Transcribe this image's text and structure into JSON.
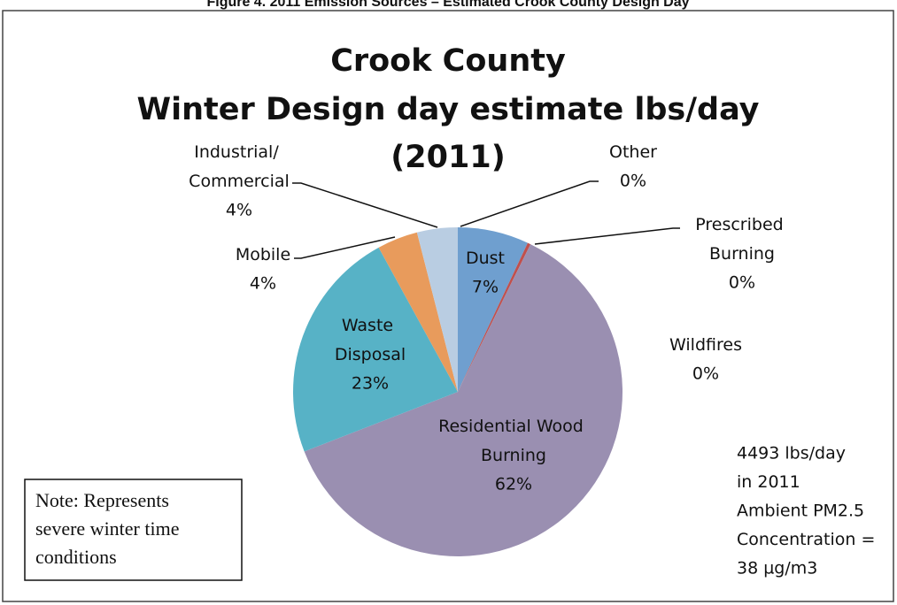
{
  "header": "Figure 4. 2011 Emission Sources – Estimated Crook County Design Day",
  "chart_data": {
    "type": "pie",
    "title": [
      "Crook County",
      "Winter Design day estimate lbs/day",
      "(2011)"
    ],
    "categories": [
      "Dust",
      "Prescribed Burning",
      "Wildfires",
      "Residential Wood Burning",
      "Waste Disposal",
      "Mobile",
      "Industrial/ Commercial",
      "Other"
    ],
    "values": [
      7,
      0.3,
      0,
      62,
      23,
      4,
      4,
      0
    ],
    "value_labels": [
      "7%",
      "0%",
      "0%",
      "62%",
      "23%",
      "4%",
      "4%",
      "0%"
    ],
    "colors": [
      "#6f9fcf",
      "#c0504d",
      "#9bbb59",
      "#9a8fb1",
      "#57b2c6",
      "#e89b5c",
      "#b9cde2",
      "#4f81bd"
    ],
    "note": [
      "Note:  Represents",
      "severe winter time",
      "conditions"
    ],
    "annotation": [
      "4493 lbs/day",
      "in 2011",
      "Ambient PM2.5",
      "Concentration =",
      "38 µg/m3"
    ]
  }
}
